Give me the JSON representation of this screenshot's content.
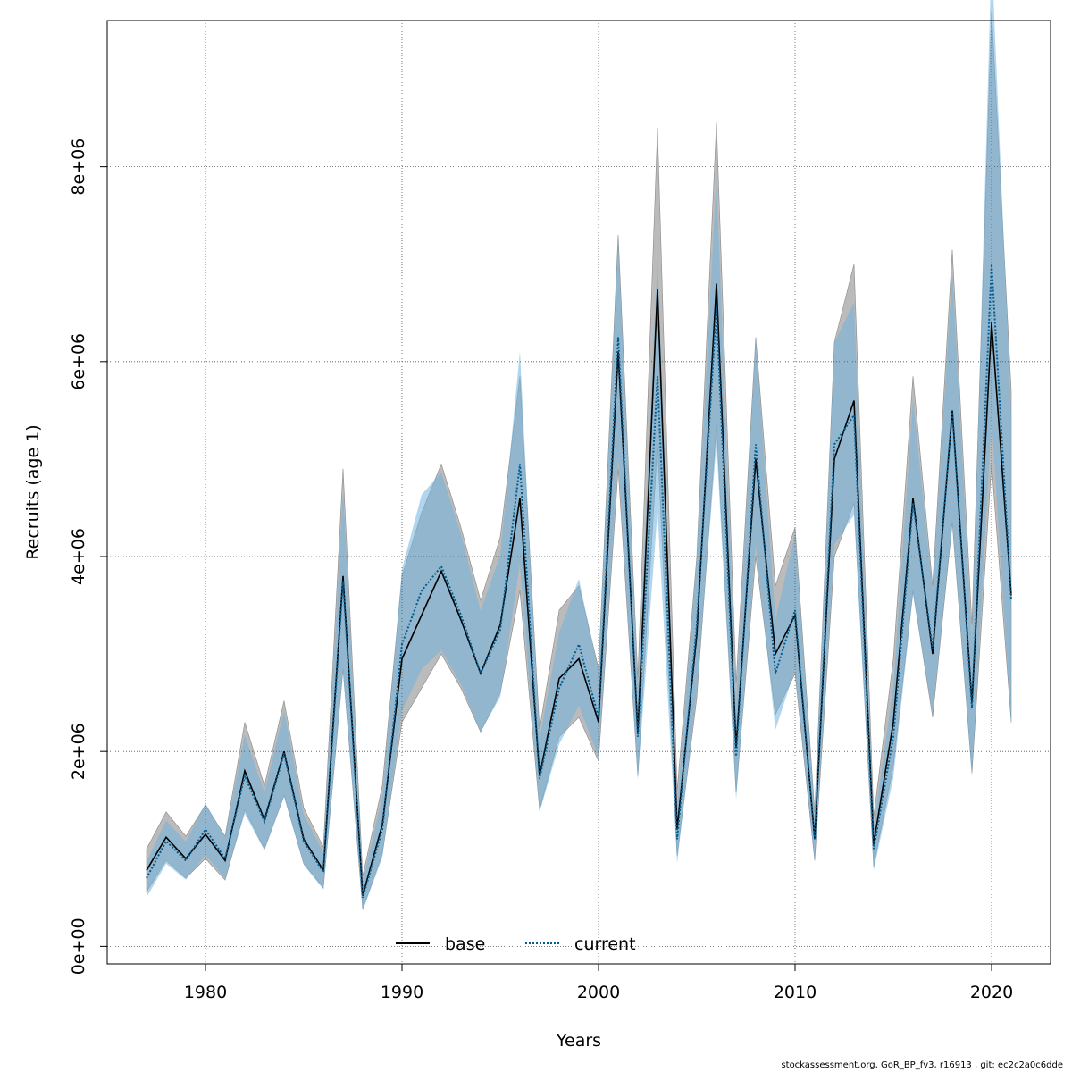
{
  "chart_data": {
    "type": "line",
    "xlabel": "Years",
    "ylabel": "Recruits (age 1)",
    "xlim": [
      1975,
      2023
    ],
    "ylim": [
      -180000,
      9500000
    ],
    "x_ticks": [
      1980,
      1990,
      2000,
      2010,
      2020
    ],
    "x_tick_labels": [
      "1980",
      "1990",
      "2000",
      "2010",
      "2020"
    ],
    "y_ticks": [
      0,
      2000000,
      4000000,
      6000000,
      8000000
    ],
    "y_tick_labels": [
      "0e+00",
      "2e+06",
      "4e+06",
      "6e+06",
      "8e+06"
    ],
    "grid": true,
    "legend_position": "bottom",
    "x": [
      1977,
      1978,
      1979,
      1980,
      1981,
      1982,
      1983,
      1984,
      1985,
      1986,
      1987,
      1988,
      1989,
      1990,
      1991,
      1992,
      1993,
      1994,
      1995,
      1996,
      1997,
      1998,
      1999,
      2000,
      2001,
      2002,
      2003,
      2004,
      2005,
      2006,
      2007,
      2008,
      2009,
      2010,
      2011,
      2012,
      2013,
      2014,
      2015,
      2016,
      2017,
      2018,
      2019,
      2020,
      2021
    ],
    "series": [
      {
        "name": "base",
        "line_style": "solid",
        "line_color": "#000000",
        "band_color": "#9e9e9e",
        "values": [
          780000,
          1120000,
          900000,
          1150000,
          880000,
          1800000,
          1300000,
          2000000,
          1100000,
          780000,
          3800000,
          520000,
          1250000,
          2950000,
          3400000,
          3850000,
          3350000,
          2800000,
          3300000,
          4600000,
          1750000,
          2750000,
          2950000,
          2300000,
          6100000,
          2200000,
          6750000,
          1200000,
          3200000,
          6800000,
          2050000,
          5000000,
          3000000,
          3400000,
          1100000,
          5000000,
          5600000,
          1050000,
          2300000,
          4600000,
          3000000,
          5500000,
          2500000,
          6400000,
          3600000
        ],
        "lower": [
          560000,
          880000,
          700000,
          900000,
          680000,
          1400000,
          1000000,
          1550000,
          850000,
          600000,
          2850000,
          380000,
          950000,
          2300000,
          2650000,
          3000000,
          2650000,
          2200000,
          2600000,
          3650000,
          1400000,
          2150000,
          2350000,
          1900000,
          4900000,
          1750000,
          5150000,
          930000,
          2550000,
          5350000,
          1580000,
          4000000,
          2380000,
          2800000,
          880000,
          4000000,
          4550000,
          820000,
          1850000,
          3650000,
          2350000,
          4350000,
          1780000,
          4950000,
          2300000
        ],
        "upper": [
          1000000,
          1380000,
          1130000,
          1450000,
          1130000,
          2300000,
          1650000,
          2520000,
          1420000,
          1020000,
          4900000,
          720000,
          1650000,
          3800000,
          4450000,
          4950000,
          4300000,
          3550000,
          4200000,
          5850000,
          2230000,
          3450000,
          3700000,
          2850000,
          7300000,
          2750000,
          8400000,
          1600000,
          4000000,
          8450000,
          2700000,
          6250000,
          3700000,
          4300000,
          1380000,
          6200000,
          7000000,
          1330000,
          2950000,
          5850000,
          3700000,
          7150000,
          3300000,
          9600000,
          5700000
        ]
      },
      {
        "name": "current",
        "line_style": "dotted",
        "line_color": "#005b8f",
        "band_color": "#6fb3dd",
        "values": [
          700000,
          1080000,
          880000,
          1200000,
          900000,
          1750000,
          1280000,
          1980000,
          1080000,
          760000,
          3750000,
          500000,
          1200000,
          3100000,
          3650000,
          3900000,
          3400000,
          2800000,
          3250000,
          4950000,
          1720000,
          2650000,
          3100000,
          2350000,
          6250000,
          2150000,
          5850000,
          1100000,
          3300000,
          6550000,
          1950000,
          5150000,
          2800000,
          3450000,
          1100000,
          5150000,
          5450000,
          1000000,
          2150000,
          4550000,
          3050000,
          5500000,
          2450000,
          7000000,
          3550000
        ]
      }
    ]
  },
  "footnote": "stockassessment.org, GoR_BP_fv3, r16913 , git: ec2c2a0c6dde"
}
